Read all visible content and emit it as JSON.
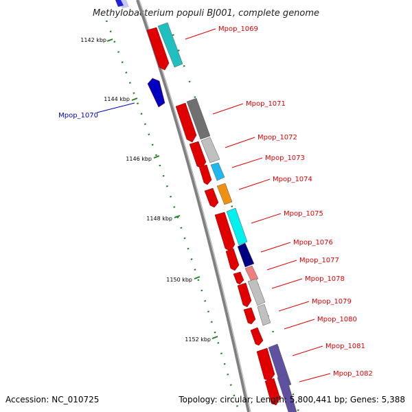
{
  "title": "Methylobacterium populi BJ001, complete genome",
  "accession": "Accession: NC_010725",
  "topology": "Topology: circular; Length: 5,800,441 bp; Genes: 5,388",
  "ticks": [
    "1142 kbp",
    "1144 kbp",
    "1146 kbp",
    "1148 kbp",
    "1150 kbp",
    "1152 kbp"
  ],
  "genes": [
    {
      "name": "Mpop_1069",
      "color": "#e00000",
      "cog_color": "#20c0c0"
    },
    {
      "name": "Mpop_1070",
      "color": "#0000c0",
      "cog_color": null
    },
    {
      "name": "Mpop_1071",
      "color": "#e00000",
      "cog_color": "#707070"
    },
    {
      "name": "Mpop_1072",
      "color": "#e00000",
      "cog_color": "#c0c0c0"
    },
    {
      "name": "Mpop_1073",
      "color": "#e00000",
      "cog_color": "#20b8f0"
    },
    {
      "name": "Mpop_1074",
      "color": "#e00000",
      "cog_color": "#f09010"
    },
    {
      "name": "Mpop_1075",
      "color": "#e00000",
      "cog_color": "#00f0f0"
    },
    {
      "name": "Mpop_1076",
      "color": "#e00000",
      "cog_color": "#000080"
    },
    {
      "name": "Mpop_1077",
      "color": "#e00000",
      "cog_color": "#f08080"
    },
    {
      "name": "Mpop_1078",
      "color": "#e00000",
      "cog_color": "#c0c0c0"
    },
    {
      "name": "Mpop_1079",
      "color": "#e00000",
      "cog_color": "#c0c0c0"
    },
    {
      "name": "Mpop_1080",
      "color": "#e00000",
      "cog_color": null
    },
    {
      "name": "Mpop_1081",
      "color": "#e00000",
      "cog_color": "#6050a0"
    },
    {
      "name": "Mpop_1082",
      "color": "#e00000",
      "cog_color": "#6050a0"
    }
  ]
}
